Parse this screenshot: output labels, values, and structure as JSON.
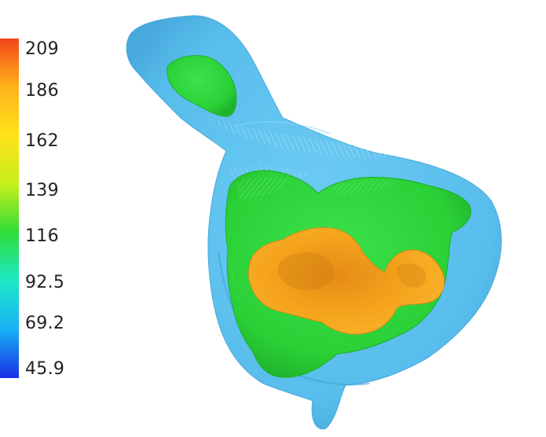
{
  "colorbar": {
    "ticks": [
      "209",
      "186",
      "162",
      "139",
      "116",
      "92.5",
      "69.2",
      "45.9"
    ],
    "min": 45.9,
    "max": 209,
    "gradient_stops": [
      "#1a2fe6",
      "#18b0f5",
      "#1de8c8",
      "#2fdc3a",
      "#c6ef1a",
      "#ffe21a",
      "#ffb31a",
      "#f2461a"
    ]
  },
  "isosurfaces": [
    {
      "layer": "outer",
      "color": "#5cc2f0"
    },
    {
      "layer": "middle",
      "color": "#2fd83c"
    },
    {
      "layer": "inner",
      "color": "#f5a41c"
    }
  ]
}
